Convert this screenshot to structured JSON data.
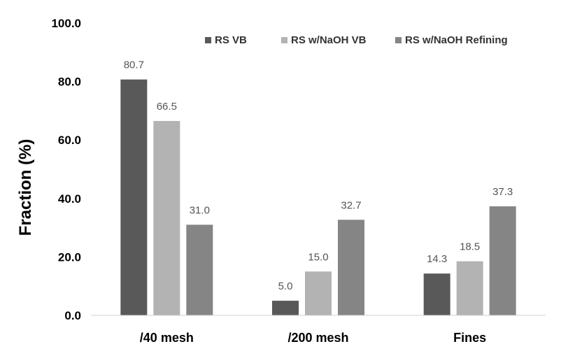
{
  "chart_data": {
    "type": "bar",
    "title": "",
    "xlabel": "",
    "ylabel": "Fraction (%)",
    "ylim": [
      0,
      100
    ],
    "yticks": [
      "0.0",
      "20.0",
      "40.0",
      "60.0",
      "80.0",
      "100.0"
    ],
    "grid": false,
    "legend_position": "top-right",
    "categories": [
      "/40 mesh",
      "/200 mesh",
      "Fines"
    ],
    "series": [
      {
        "name": "RS VB",
        "color": "#595959",
        "values": [
          80.7,
          5.0,
          14.3
        ],
        "labels": [
          "80.7",
          "5.0",
          "14.3"
        ]
      },
      {
        "name": "RS w/NaOH VB",
        "color": "#b3b3b3",
        "values": [
          66.5,
          15.0,
          18.5
        ],
        "labels": [
          "66.5",
          "15.0",
          "18.5"
        ]
      },
      {
        "name": "RS w/NaOH Refining",
        "color": "#858585",
        "values": [
          31.0,
          32.7,
          37.3
        ],
        "labels": [
          "31.0",
          "32.7",
          "37.3"
        ]
      }
    ]
  }
}
